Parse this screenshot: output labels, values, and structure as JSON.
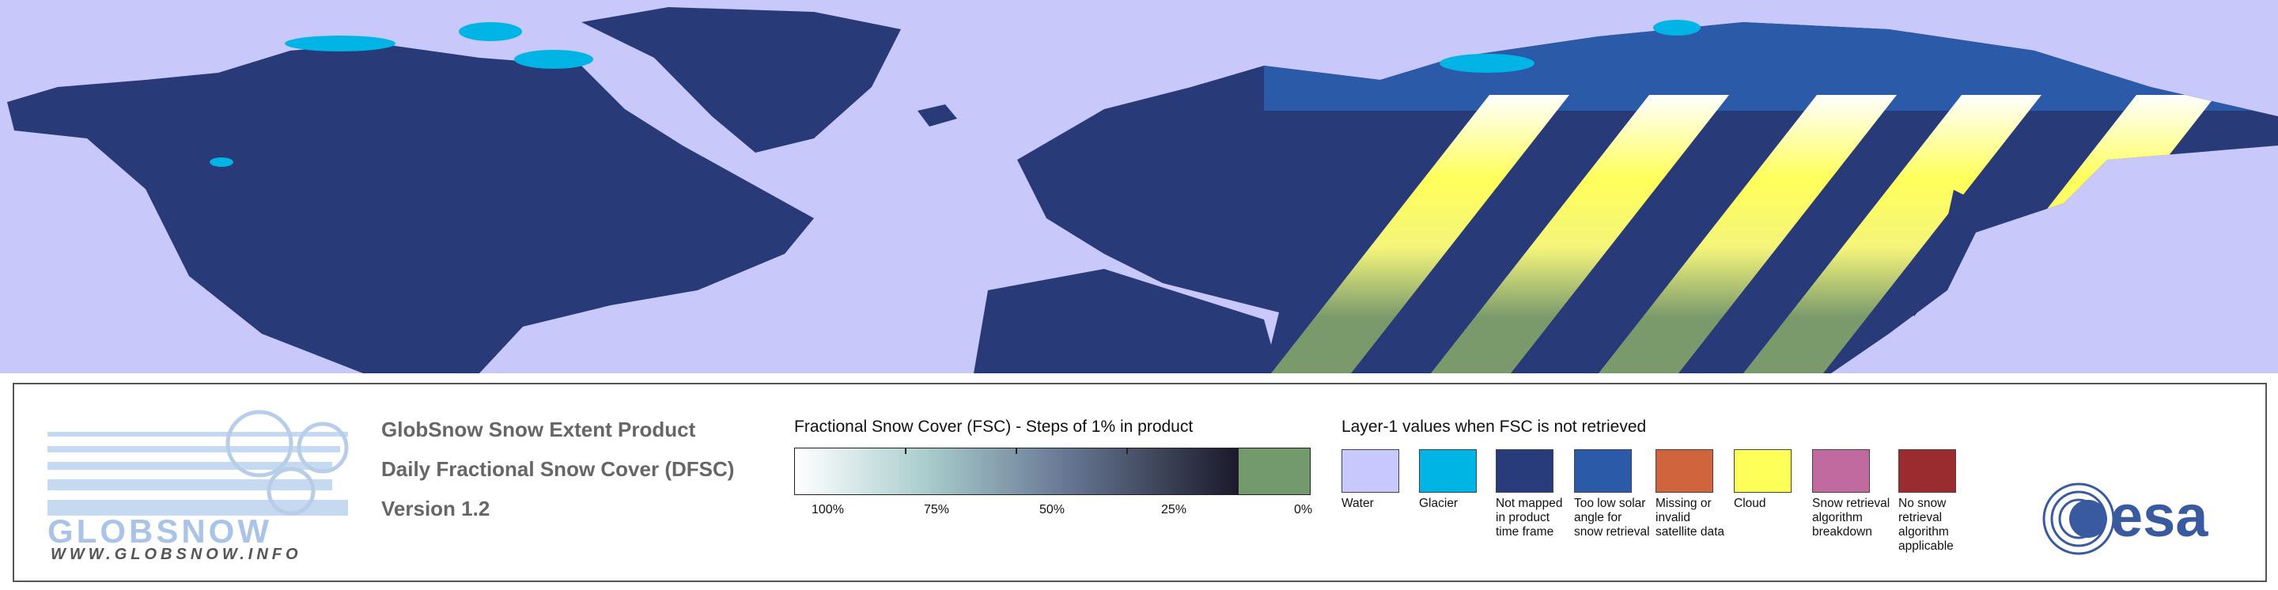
{
  "logo": {
    "name": "GLOBSNOW",
    "url": "WWW.GLOBSNOW.INFO"
  },
  "product": {
    "lines": [
      "GlobSnow Snow Extent Product",
      "Daily Fractional Snow Cover (DFSC)",
      "Version 1.2"
    ]
  },
  "fsc_legend": {
    "title": "Fractional Snow Cover (FSC) - Steps of 1% in product",
    "tick_labels": [
      "100%",
      "75%",
      "50%",
      "25%",
      "0%"
    ],
    "no_snow_color": "#739a6c"
  },
  "layer1_legend": {
    "title": "Layer-1 values when FSC is not retrieved",
    "classes": [
      {
        "label": "Water",
        "color": "#c8c8ff"
      },
      {
        "label": "Glacier",
        "color": "#00b4e6"
      },
      {
        "label": "Not mapped in product time frame",
        "color": "#283c7c"
      },
      {
        "label": "Too low solar angle for snow retrieval",
        "color": "#2a5aa8"
      },
      {
        "label": "Missing or invalid satellite data",
        "color": "#d0643c"
      },
      {
        "label": "Cloud",
        "color": "#ffff5a"
      },
      {
        "label": "Snow retrieval algorithm breakdown",
        "color": "#c06aa0"
      },
      {
        "label": "No snow retrieval algorithm applicable",
        "color": "#9a2c30"
      }
    ]
  },
  "agency_logo": {
    "text": "esa"
  }
}
